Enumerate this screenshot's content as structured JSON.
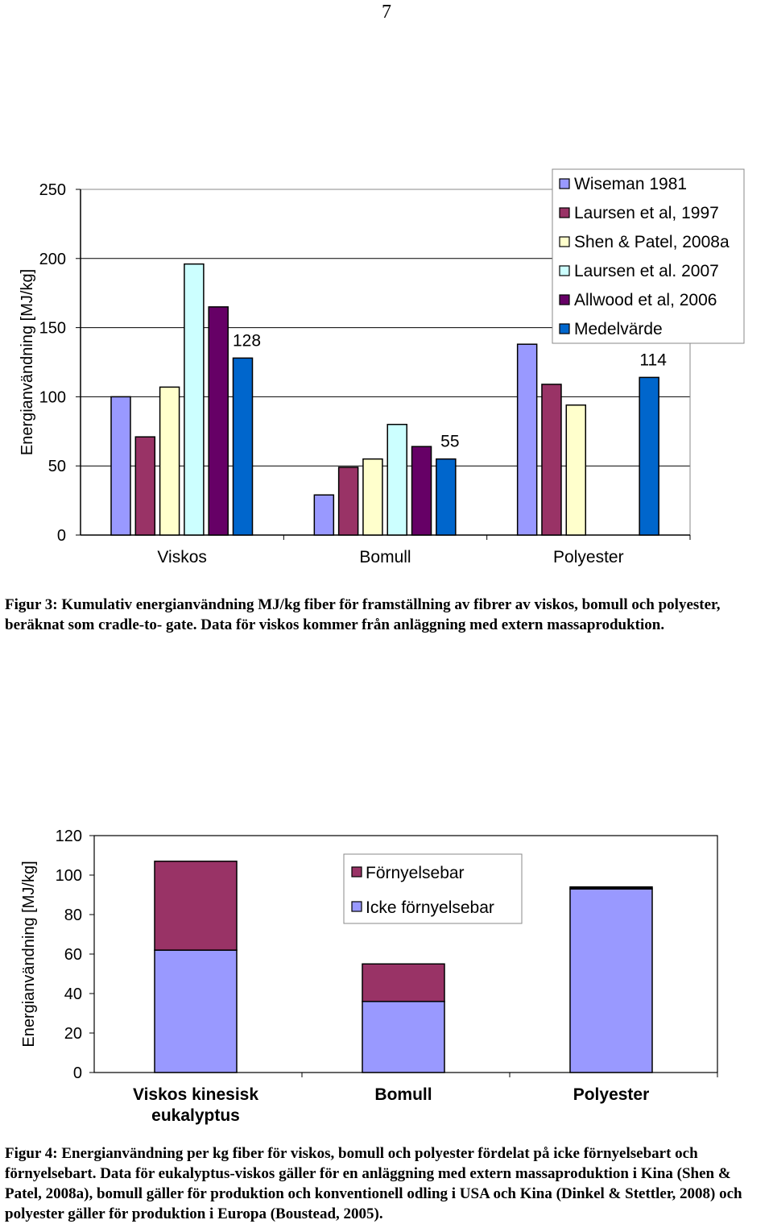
{
  "page_number": "7",
  "colors": {
    "wiseman": "#9999ff",
    "laursen1997": "#993366",
    "shen": "#ffffcc",
    "laursen2007": "#ccffff",
    "allwood": "#660066",
    "medel": "#0066cc",
    "fornyelsebar": "#993366",
    "icke": "#9999ff"
  },
  "chart_data": [
    {
      "type": "bar",
      "title": "",
      "ylabel": "Energianvändning [MJ/kg]",
      "xlabel": "",
      "ylim": [
        0,
        250
      ],
      "yticks": [
        "0",
        "50",
        "100",
        "150",
        "200",
        "250"
      ],
      "grid": true,
      "legend_position": "top-right",
      "categories": [
        "Viskos",
        "Bomull",
        "Polyester"
      ],
      "series": [
        {
          "name": "Wiseman 1981",
          "values": [
            100,
            29,
            138
          ]
        },
        {
          "name": "Laursen et al, 1997",
          "values": [
            71,
            49,
            109
          ]
        },
        {
          "name": "Shen & Patel, 2008a",
          "values": [
            107,
            55,
            94
          ]
        },
        {
          "name": "Laursen et al. 2007",
          "values": [
            196,
            80,
            null
          ]
        },
        {
          "name": "Allwood et al, 2006",
          "values": [
            165,
            64,
            null
          ]
        },
        {
          "name": "Medelvärde",
          "values": [
            128,
            55,
            114
          ]
        }
      ],
      "data_labels": [
        "128",
        "55",
        "114"
      ]
    },
    {
      "type": "bar",
      "stacked": true,
      "title": "",
      "ylabel": "Energianvändning [MJ/kg]",
      "xlabel": "",
      "ylim": [
        0,
        120
      ],
      "yticks": [
        "0",
        "20",
        "40",
        "60",
        "80",
        "100",
        "120"
      ],
      "grid": false,
      "legend_position": "top-center",
      "categories": [
        "Viskos kinesisk eukalyptus",
        "Bomull",
        "Polyester"
      ],
      "category_lines": [
        [
          "Viskos kinesisk",
          "eukalyptus"
        ],
        [
          "Bomull"
        ],
        [
          "Polyester"
        ]
      ],
      "series": [
        {
          "name": "Icke förnyelsebar",
          "values": [
            62,
            36,
            93
          ]
        },
        {
          "name": "Förnyelsebar",
          "values": [
            45,
            19,
            1
          ]
        }
      ],
      "legend_order": [
        "Förnyelsebar",
        "Icke förnyelsebar"
      ]
    }
  ],
  "captions": {
    "fig3": "Figur 3: Kumulativ energianvändning MJ/kg fiber för framställning av fibrer av viskos, bomull och polyester, beräknat som cradle-to- gate. Data för viskos kommer från anläggning med extern massaproduktion.",
    "fig4": "Figur 4: Energianvändning per kg fiber för viskos, bomull och polyester fördelat på icke förnyelsebart och förnyelsebart. Data för eukalyptus-viskos gäller för en anläggning med extern massaproduktion i Kina (Shen & Patel, 2008a), bomull gäller för produktion och konventionell odling i USA och Kina (Dinkel & Stettler, 2008) och polyester gäller för produktion i Europa (Boustead, 2005)."
  }
}
